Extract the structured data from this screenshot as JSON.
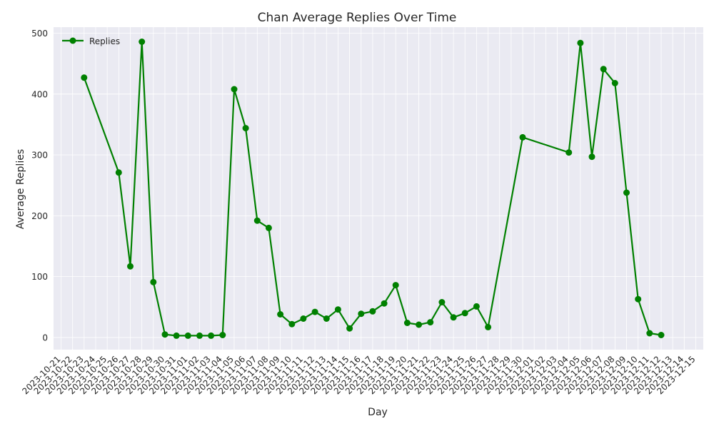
{
  "chart_data": {
    "type": "line",
    "title": "Chan Average Replies Over Time",
    "xlabel": "Day",
    "ylabel": "Average Replies",
    "ylim": [
      -20,
      510
    ],
    "y_ticks": [
      0,
      100,
      200,
      300,
      400,
      500
    ],
    "x_range": [
      "2023-10-21",
      "2023-12-15"
    ],
    "x_tick_labels": [
      "2023-10-21",
      "2023-10-22",
      "2023-10-23",
      "2023-10-24",
      "2023-10-25",
      "2023-10-26",
      "2023-10-27",
      "2023-10-28",
      "2023-10-29",
      "2023-10-30",
      "2023-10-31",
      "2023-11-01",
      "2023-11-02",
      "2023-11-03",
      "2023-11-04",
      "2023-11-05",
      "2023-11-06",
      "2023-11-07",
      "2023-11-08",
      "2023-11-09",
      "2023-11-10",
      "2023-11-11",
      "2023-11-12",
      "2023-11-13",
      "2023-11-14",
      "2023-11-15",
      "2023-11-16",
      "2023-11-17",
      "2023-11-18",
      "2023-11-19",
      "2023-11-20",
      "2023-11-21",
      "2023-11-22",
      "2023-11-23",
      "2023-11-24",
      "2023-11-25",
      "2023-11-26",
      "2023-11-27",
      "2023-11-28",
      "2023-11-29",
      "2023-11-30",
      "2023-12-01",
      "2023-12-02",
      "2023-12-03",
      "2023-12-04",
      "2023-12-05",
      "2023-12-06",
      "2023-12-07",
      "2023-12-08",
      "2023-12-09",
      "2023-12-10",
      "2023-12-11",
      "2023-12-12",
      "2023-12-13",
      "2023-12-14",
      "2023-12-15"
    ],
    "grid": true,
    "legend_position": "top-left",
    "colors": {
      "series": "#008000",
      "background": "#eaeaf2",
      "grid": "#ffffff"
    },
    "series": [
      {
        "name": "Replies",
        "points": [
          {
            "x": "2023-10-23",
            "y": 427
          },
          {
            "x": "2023-10-26",
            "y": 271
          },
          {
            "x": "2023-10-27",
            "y": 117
          },
          {
            "x": "2023-10-28",
            "y": 486
          },
          {
            "x": "2023-10-29",
            "y": 91
          },
          {
            "x": "2023-10-30",
            "y": 5
          },
          {
            "x": "2023-10-31",
            "y": 3
          },
          {
            "x": "2023-11-01",
            "y": 3
          },
          {
            "x": "2023-11-02",
            "y": 3
          },
          {
            "x": "2023-11-03",
            "y": 3
          },
          {
            "x": "2023-11-04",
            "y": 4
          },
          {
            "x": "2023-11-05",
            "y": 408
          },
          {
            "x": "2023-11-06",
            "y": 344
          },
          {
            "x": "2023-11-07",
            "y": 192
          },
          {
            "x": "2023-11-08",
            "y": 180
          },
          {
            "x": "2023-11-09",
            "y": 38
          },
          {
            "x": "2023-11-10",
            "y": 22
          },
          {
            "x": "2023-11-11",
            "y": 31
          },
          {
            "x": "2023-11-12",
            "y": 42
          },
          {
            "x": "2023-11-13",
            "y": 31
          },
          {
            "x": "2023-11-14",
            "y": 46
          },
          {
            "x": "2023-11-15",
            "y": 15
          },
          {
            "x": "2023-11-16",
            "y": 39
          },
          {
            "x": "2023-11-17",
            "y": 43
          },
          {
            "x": "2023-11-18",
            "y": 56
          },
          {
            "x": "2023-11-19",
            "y": 86
          },
          {
            "x": "2023-11-20",
            "y": 24
          },
          {
            "x": "2023-11-21",
            "y": 21
          },
          {
            "x": "2023-11-22",
            "y": 25
          },
          {
            "x": "2023-11-23",
            "y": 58
          },
          {
            "x": "2023-11-24",
            "y": 33
          },
          {
            "x": "2023-11-25",
            "y": 40
          },
          {
            "x": "2023-11-26",
            "y": 51
          },
          {
            "x": "2023-11-27",
            "y": 17
          },
          {
            "x": "2023-11-30",
            "y": 329
          },
          {
            "x": "2023-12-04",
            "y": 304
          },
          {
            "x": "2023-12-05",
            "y": 484
          },
          {
            "x": "2023-12-06",
            "y": 297
          },
          {
            "x": "2023-12-07",
            "y": 441
          },
          {
            "x": "2023-12-08",
            "y": 418
          },
          {
            "x": "2023-12-09",
            "y": 238
          },
          {
            "x": "2023-12-10",
            "y": 63
          },
          {
            "x": "2023-12-11",
            "y": 7
          },
          {
            "x": "2023-12-12",
            "y": 4
          }
        ]
      }
    ]
  }
}
